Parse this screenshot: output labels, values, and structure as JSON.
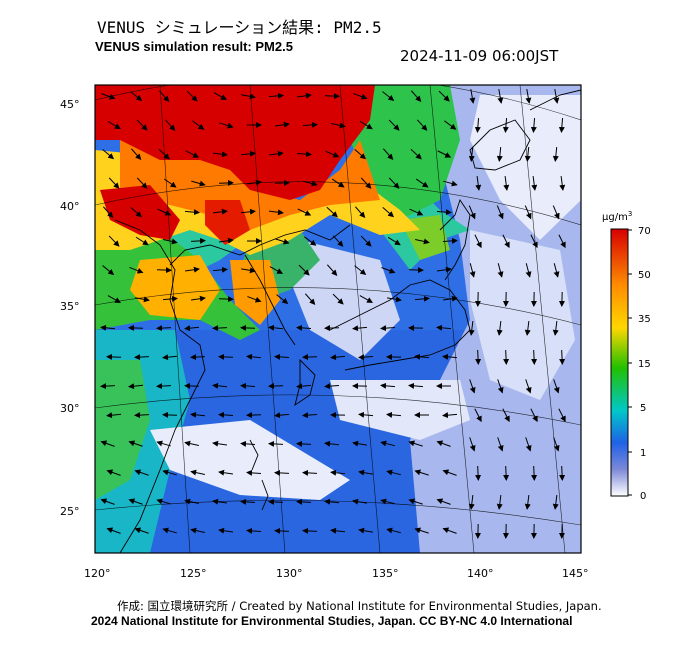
{
  "header": {
    "title_ja": "VENUS シミュレーション結果: PM2.5",
    "title_en": "VENUS simulation result: PM2.5",
    "datetime": "2024-11-09 06:00JST"
  },
  "map": {
    "lon_ticks": [
      "120°",
      "125°",
      "130°",
      "135°",
      "140°",
      "145°"
    ],
    "lat_ticks": [
      "45°",
      "40°",
      "35°",
      "30°",
      "25°"
    ],
    "layers": [
      "PM2.5 concentration",
      "wind vectors",
      "coastlines",
      "graticule"
    ]
  },
  "colorbar": {
    "unit_base": "μg/m",
    "unit_exp": "3",
    "ticks": [
      "70",
      "50",
      "35",
      "15",
      "5",
      "1",
      "0"
    ],
    "colors": [
      "#d70000",
      "#ff8c00",
      "#ffd700",
      "#22c000",
      "#00c8c8",
      "#1f62e6",
      "#7c88d8",
      "#ffffff"
    ]
  },
  "footer": {
    "credit_1": "作成: 国立環境研究所 / Created by National Institute for Environmental Studies, Japan.",
    "credit_2": "2024 National Institute for Environmental Studies, Japan. CC BY-NC 4.0 International"
  }
}
